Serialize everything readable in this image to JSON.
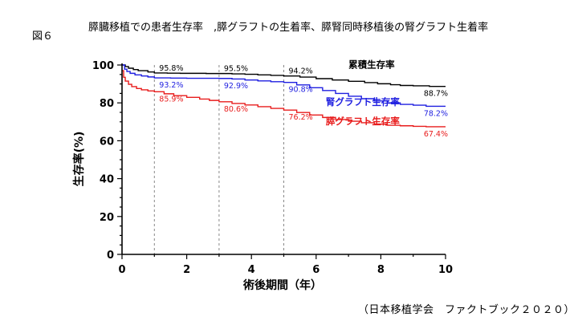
{
  "figure_label": "図６",
  "source": "（日本移植学会　ファクトブック２０２０）",
  "chart_data": {
    "type": "line",
    "title": "膵臓移植での患者生存率　,膵グラフトの生着率、膵腎同時移植後の腎グラフト生着率",
    "xlabel": "術後期間（年）",
    "ylabel": "生存率(%)",
    "xlim": [
      0,
      10
    ],
    "ylim": [
      0,
      100
    ],
    "xticks": [
      0,
      2,
      4,
      6,
      8,
      10
    ],
    "yticks": [
      0,
      20,
      40,
      60,
      80,
      100
    ],
    "grid": false,
    "reference_lines_x": [
      1,
      3,
      5
    ],
    "series": [
      {
        "name": "累積生存率",
        "color": "#000000",
        "step_x": [
          0,
          0.1,
          0.2,
          0.35,
          0.5,
          0.8,
          1.0,
          1.4,
          1.8,
          2.2,
          2.6,
          3.0,
          3.4,
          3.8,
          4.2,
          4.6,
          5.0,
          5.5,
          6.0,
          6.5,
          7.0,
          7.5,
          7.9,
          8.3,
          8.6,
          9.0,
          9.5,
          10.0
        ],
        "step_y": [
          100,
          99.2,
          98.3,
          97.6,
          97.0,
          96.3,
          95.8,
          95.7,
          95.6,
          95.6,
          95.5,
          95.5,
          95.3,
          95.1,
          94.8,
          94.5,
          94.2,
          93.6,
          92.8,
          92.1,
          91.4,
          90.7,
          90.1,
          89.6,
          89.2,
          89.0,
          88.7,
          88.7
        ],
        "labels": [
          {
            "x": 1,
            "text": "95.8%"
          },
          {
            "x": 3,
            "text": "95.5%"
          },
          {
            "x": 5,
            "text": "94.2%"
          },
          {
            "x": 10,
            "text": "88.7%"
          }
        ]
      },
      {
        "name": "腎グラフト生存率",
        "color": "#1f1fe0",
        "step_x": [
          0,
          0.08,
          0.15,
          0.25,
          0.4,
          0.6,
          0.8,
          1.0,
          1.5,
          2.0,
          2.5,
          3.0,
          3.4,
          3.8,
          4.2,
          4.6,
          5.0,
          5.4,
          5.8,
          6.2,
          6.6,
          7.0,
          7.4,
          7.8,
          8.2,
          8.6,
          9.0,
          9.4,
          10.0
        ],
        "step_y": [
          100,
          97.8,
          96.6,
          95.6,
          94.8,
          94.2,
          93.7,
          93.2,
          93.1,
          93.0,
          93.0,
          92.9,
          92.6,
          92.1,
          91.6,
          91.2,
          90.8,
          89.5,
          88.0,
          86.5,
          85.0,
          83.5,
          82.2,
          81.0,
          80.0,
          79.2,
          78.8,
          78.2,
          78.2
        ],
        "labels": [
          {
            "x": 1,
            "text": "93.2%"
          },
          {
            "x": 3,
            "text": "92.9%"
          },
          {
            "x": 5,
            "text": "90.8%"
          },
          {
            "x": 10,
            "text": "78.2%"
          }
        ]
      },
      {
        "name": "膵グラフト生存率",
        "color": "#e81c1c",
        "step_x": [
          0,
          0.05,
          0.1,
          0.2,
          0.3,
          0.45,
          0.6,
          0.8,
          1.0,
          1.3,
          1.6,
          2.0,
          2.4,
          2.7,
          3.0,
          3.4,
          3.8,
          4.2,
          4.6,
          5.0,
          5.4,
          5.8,
          6.2,
          6.6,
          7.0,
          7.4,
          7.8,
          8.2,
          8.6,
          9.0,
          9.4,
          10.0
        ],
        "step_y": [
          97,
          93.5,
          91.5,
          89.8,
          88.6,
          87.6,
          86.9,
          86.3,
          85.9,
          84.8,
          83.8,
          82.9,
          82.0,
          81.3,
          80.6,
          79.7,
          78.9,
          78.0,
          77.1,
          76.2,
          74.9,
          73.6,
          72.3,
          71.2,
          70.3,
          69.5,
          68.8,
          68.2,
          67.9,
          67.6,
          67.4,
          67.4
        ],
        "labels": [
          {
            "x": 1,
            "text": "85.9%"
          },
          {
            "x": 3,
            "text": "80.6%"
          },
          {
            "x": 5,
            "text": "76.2%"
          },
          {
            "x": 10,
            "text": "67.4%"
          }
        ]
      }
    ]
  }
}
